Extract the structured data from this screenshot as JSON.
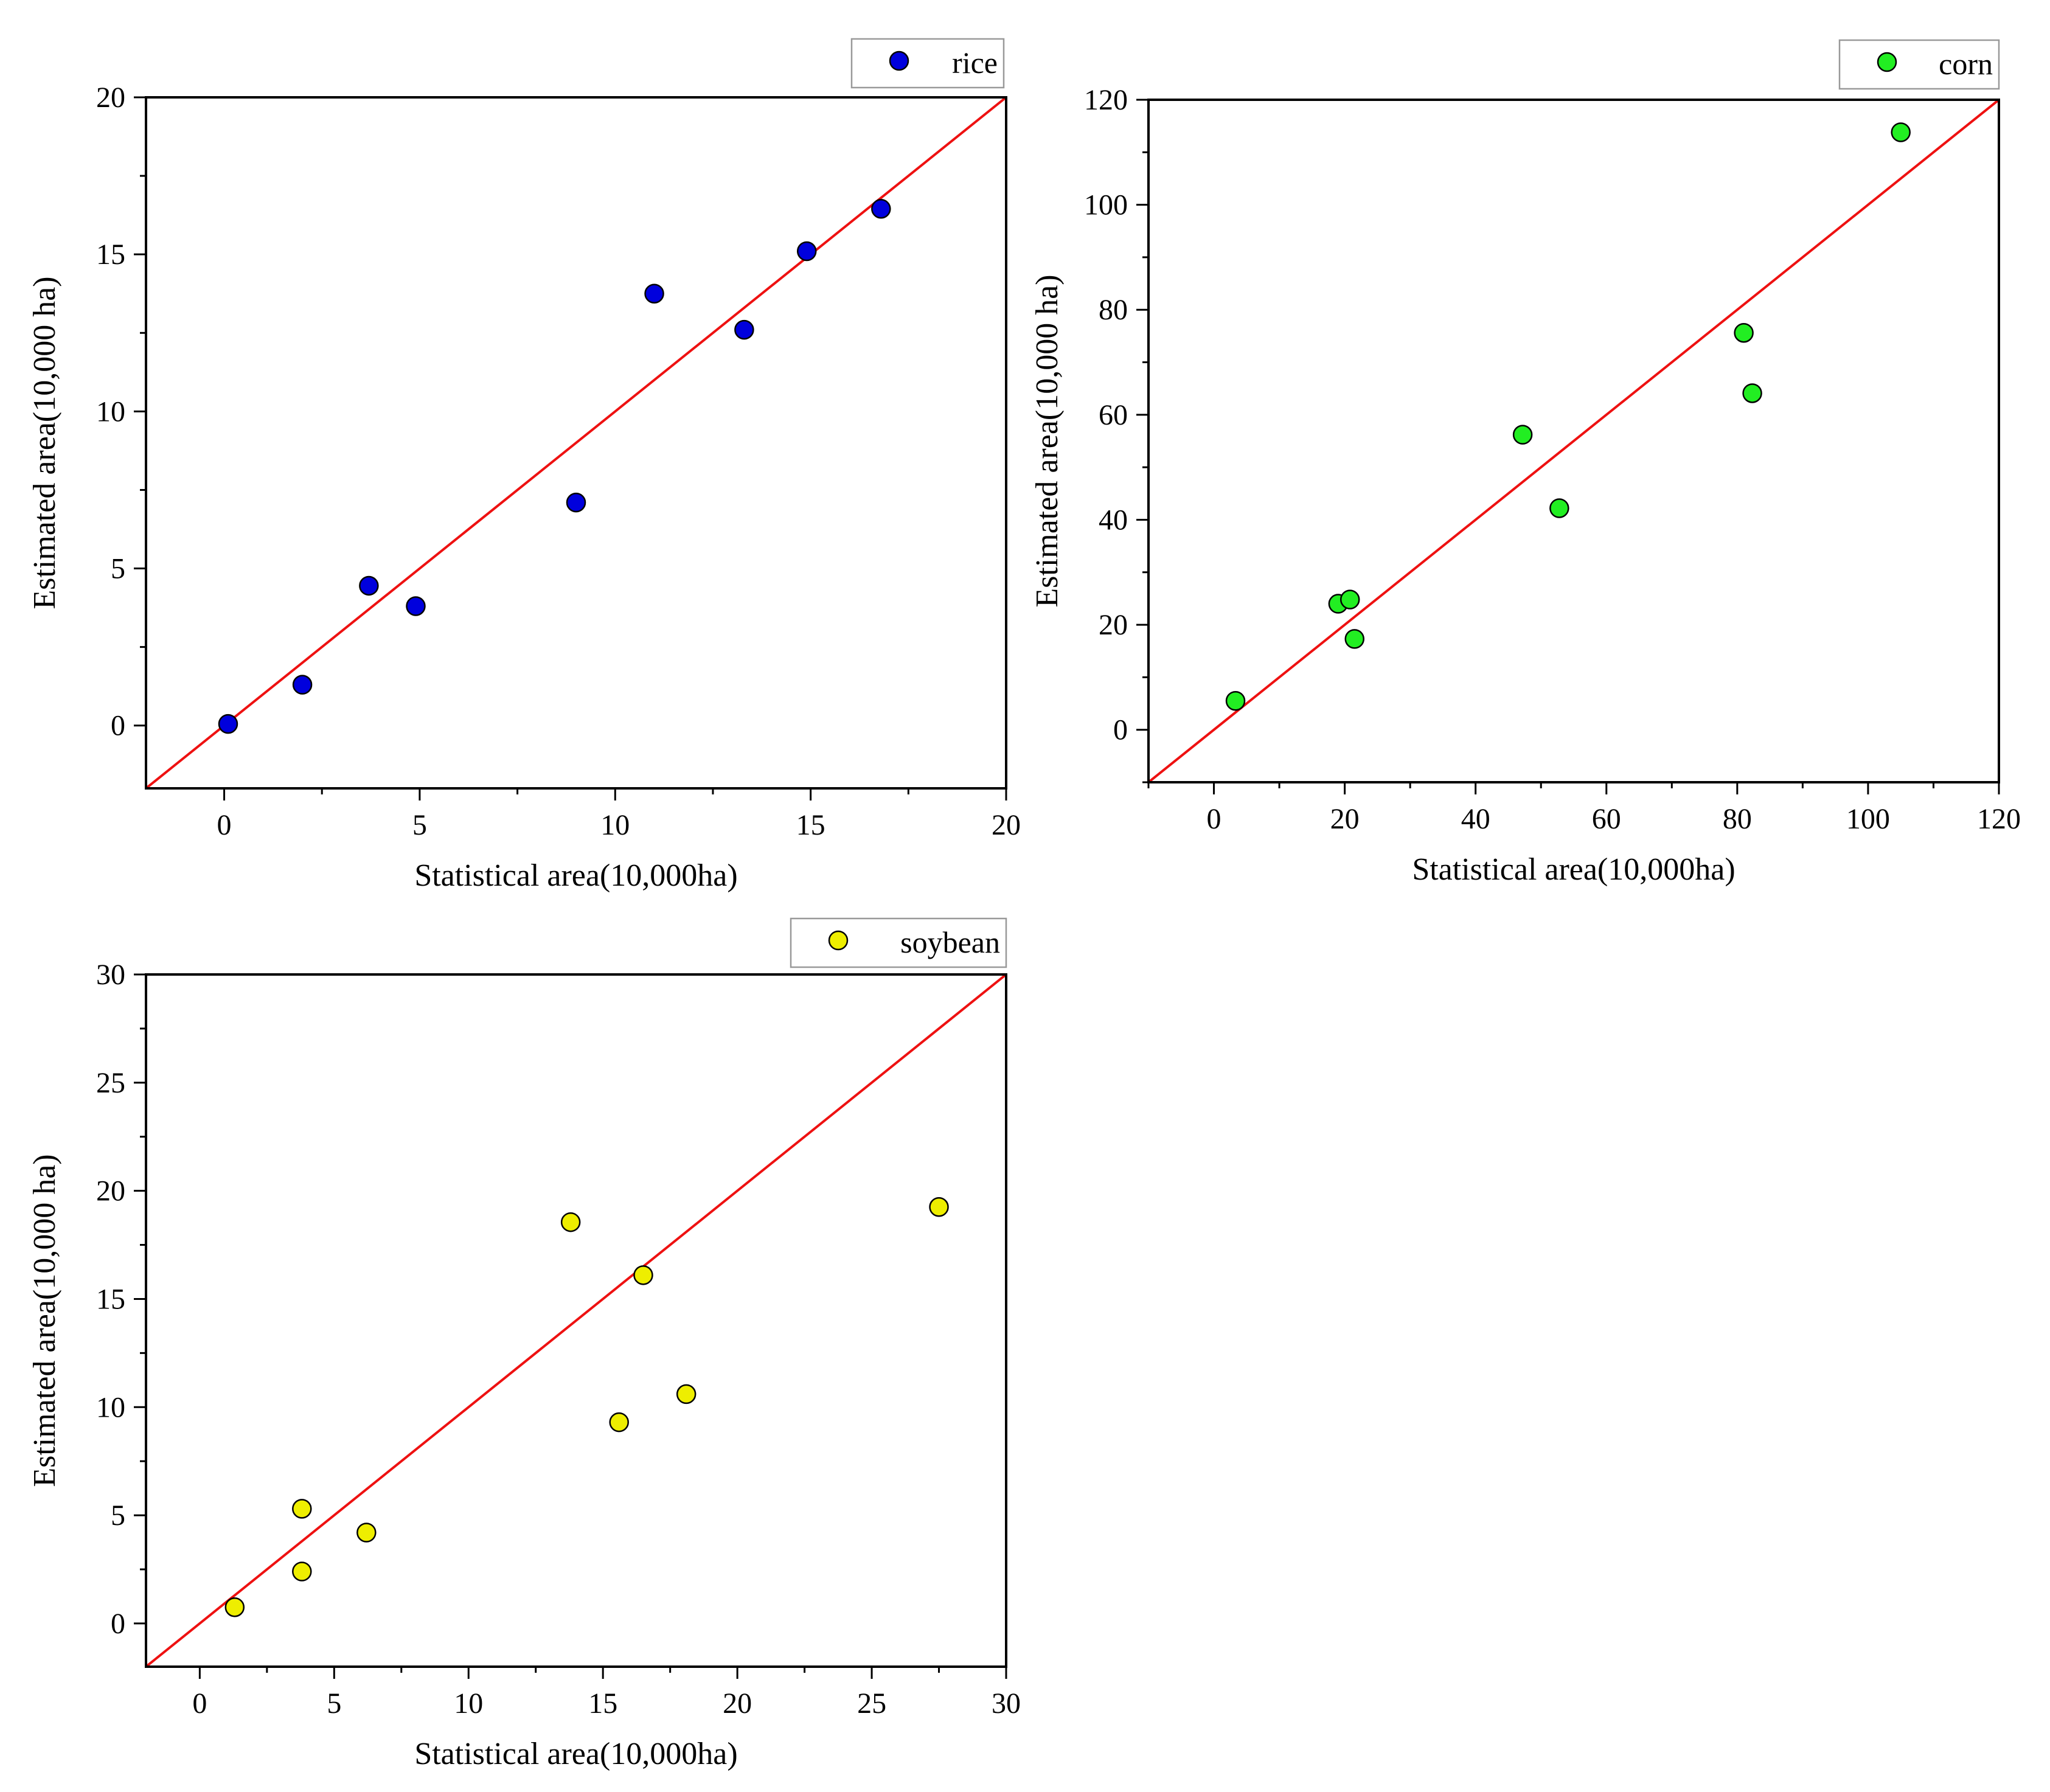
{
  "chart_data": [
    {
      "type": "scatter",
      "id": "rice",
      "xlabel": "Statistical area(10,000ha)",
      "ylabel": "Estimated area(10,000 ha)",
      "xlim": [
        -2,
        20
      ],
      "ylim": [
        -2,
        20
      ],
      "xticks": [
        0,
        5,
        10,
        15,
        20
      ],
      "yticks": [
        0,
        5,
        10,
        15,
        20
      ],
      "minor_step": 2.5,
      "legend": "rice",
      "legend_position": "top-right",
      "marker_color": "#0000dd",
      "reference_line": {
        "label": "1:1 line",
        "color": "#ee1111"
      },
      "points": [
        {
          "x": 0.1,
          "y": 0.05
        },
        {
          "x": 2.0,
          "y": 1.3
        },
        {
          "x": 3.7,
          "y": 4.45
        },
        {
          "x": 4.9,
          "y": 3.8
        },
        {
          "x": 9.0,
          "y": 7.1
        },
        {
          "x": 11.0,
          "y": 13.75
        },
        {
          "x": 13.3,
          "y": 12.6
        },
        {
          "x": 14.9,
          "y": 15.1
        },
        {
          "x": 16.8,
          "y": 16.45
        }
      ]
    },
    {
      "type": "scatter",
      "id": "corn",
      "xlabel": "Statistical area(10,000ha)",
      "ylabel": "Estimated area(10,000 ha)",
      "xlim": [
        -10,
        120
      ],
      "ylim": [
        -10,
        120
      ],
      "xticks": [
        0,
        20,
        40,
        60,
        80,
        100,
        120
      ],
      "yticks": [
        0,
        20,
        40,
        60,
        80,
        100,
        120
      ],
      "minor_step": 10,
      "legend": "corn",
      "legend_position": "top-right",
      "marker_color": "#22ee22",
      "reference_line": {
        "label": "1:1 line",
        "color": "#ee1111"
      },
      "points": [
        {
          "x": 3.3,
          "y": 5.5
        },
        {
          "x": 19.0,
          "y": 24.0
        },
        {
          "x": 20.8,
          "y": 24.8
        },
        {
          "x": 21.5,
          "y": 17.3
        },
        {
          "x": 47.2,
          "y": 56.2
        },
        {
          "x": 52.8,
          "y": 42.2
        },
        {
          "x": 81.0,
          "y": 75.6
        },
        {
          "x": 82.3,
          "y": 64.1
        },
        {
          "x": 105.0,
          "y": 113.8
        }
      ]
    },
    {
      "type": "scatter",
      "id": "soybean",
      "xlabel": "Statistical area(10,000ha)",
      "ylabel": "Estimated area(10,000 ha)",
      "xlim": [
        -2,
        30
      ],
      "ylim": [
        -2,
        30
      ],
      "xticks": [
        0,
        5,
        10,
        15,
        20,
        25,
        30
      ],
      "yticks": [
        0,
        5,
        10,
        15,
        20,
        25,
        30
      ],
      "minor_step": 2.5,
      "legend": "soybean",
      "legend_position": "top-right",
      "marker_color": "#eeee00",
      "reference_line": {
        "label": "1:1 line",
        "color": "#ee1111"
      },
      "points": [
        {
          "x": 1.3,
          "y": 0.75
        },
        {
          "x": 3.8,
          "y": 5.3
        },
        {
          "x": 3.8,
          "y": 2.4
        },
        {
          "x": 6.2,
          "y": 4.2
        },
        {
          "x": 13.8,
          "y": 18.55
        },
        {
          "x": 15.6,
          "y": 9.3
        },
        {
          "x": 16.5,
          "y": 16.1
        },
        {
          "x": 18.1,
          "y": 10.6
        },
        {
          "x": 27.5,
          "y": 19.25
        }
      ]
    }
  ]
}
